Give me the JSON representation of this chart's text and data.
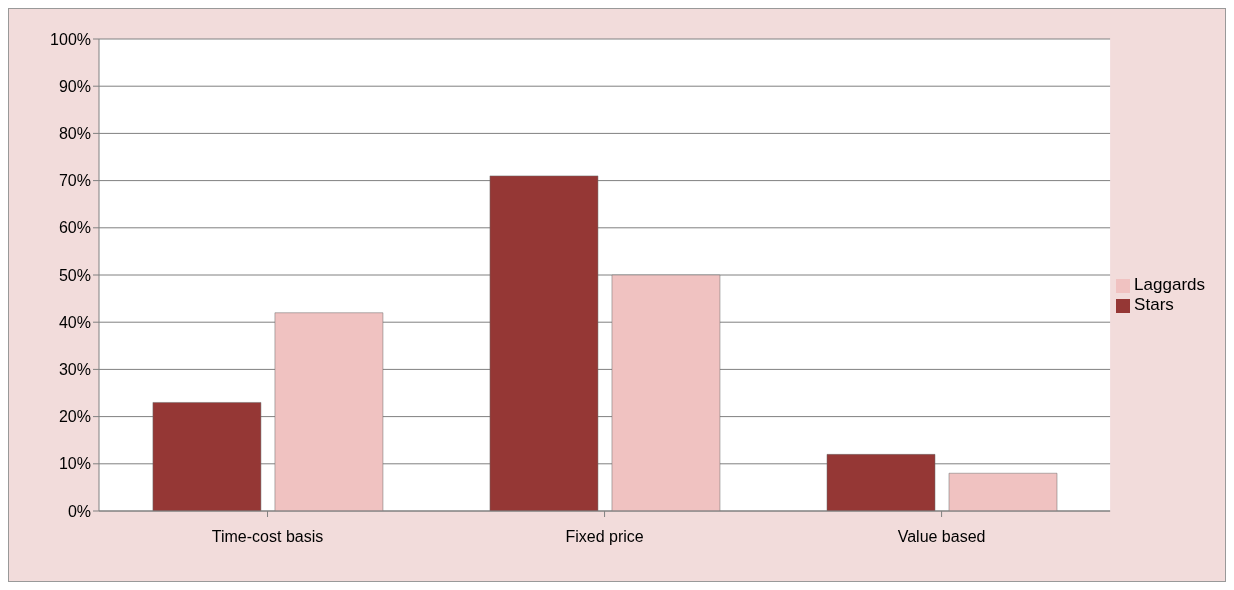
{
  "chart_data": {
    "type": "bar",
    "categories": [
      "Time-cost basis",
      "Fixed price",
      "Value based"
    ],
    "series": [
      {
        "name": "Stars",
        "color": "#953735",
        "values": [
          23,
          71,
          12
        ]
      },
      {
        "name": "Laggards",
        "color": "#f0c2c1",
        "values": [
          42,
          50,
          8
        ]
      }
    ],
    "ylim": [
      0,
      100
    ],
    "yticks": [
      {
        "value": 0,
        "label": "0%"
      },
      {
        "value": 10,
        "label": "10%"
      },
      {
        "value": 20,
        "label": "20%"
      },
      {
        "value": 30,
        "label": "30%"
      },
      {
        "value": 40,
        "label": "40%"
      },
      {
        "value": 50,
        "label": "50%"
      },
      {
        "value": 60,
        "label": "60%"
      },
      {
        "value": 70,
        "label": "70%"
      },
      {
        "value": 80,
        "label": "80%"
      },
      {
        "value": 90,
        "label": "90%"
      },
      {
        "value": 100,
        "label": "100%"
      }
    ],
    "grid": "y",
    "legend": "right"
  }
}
